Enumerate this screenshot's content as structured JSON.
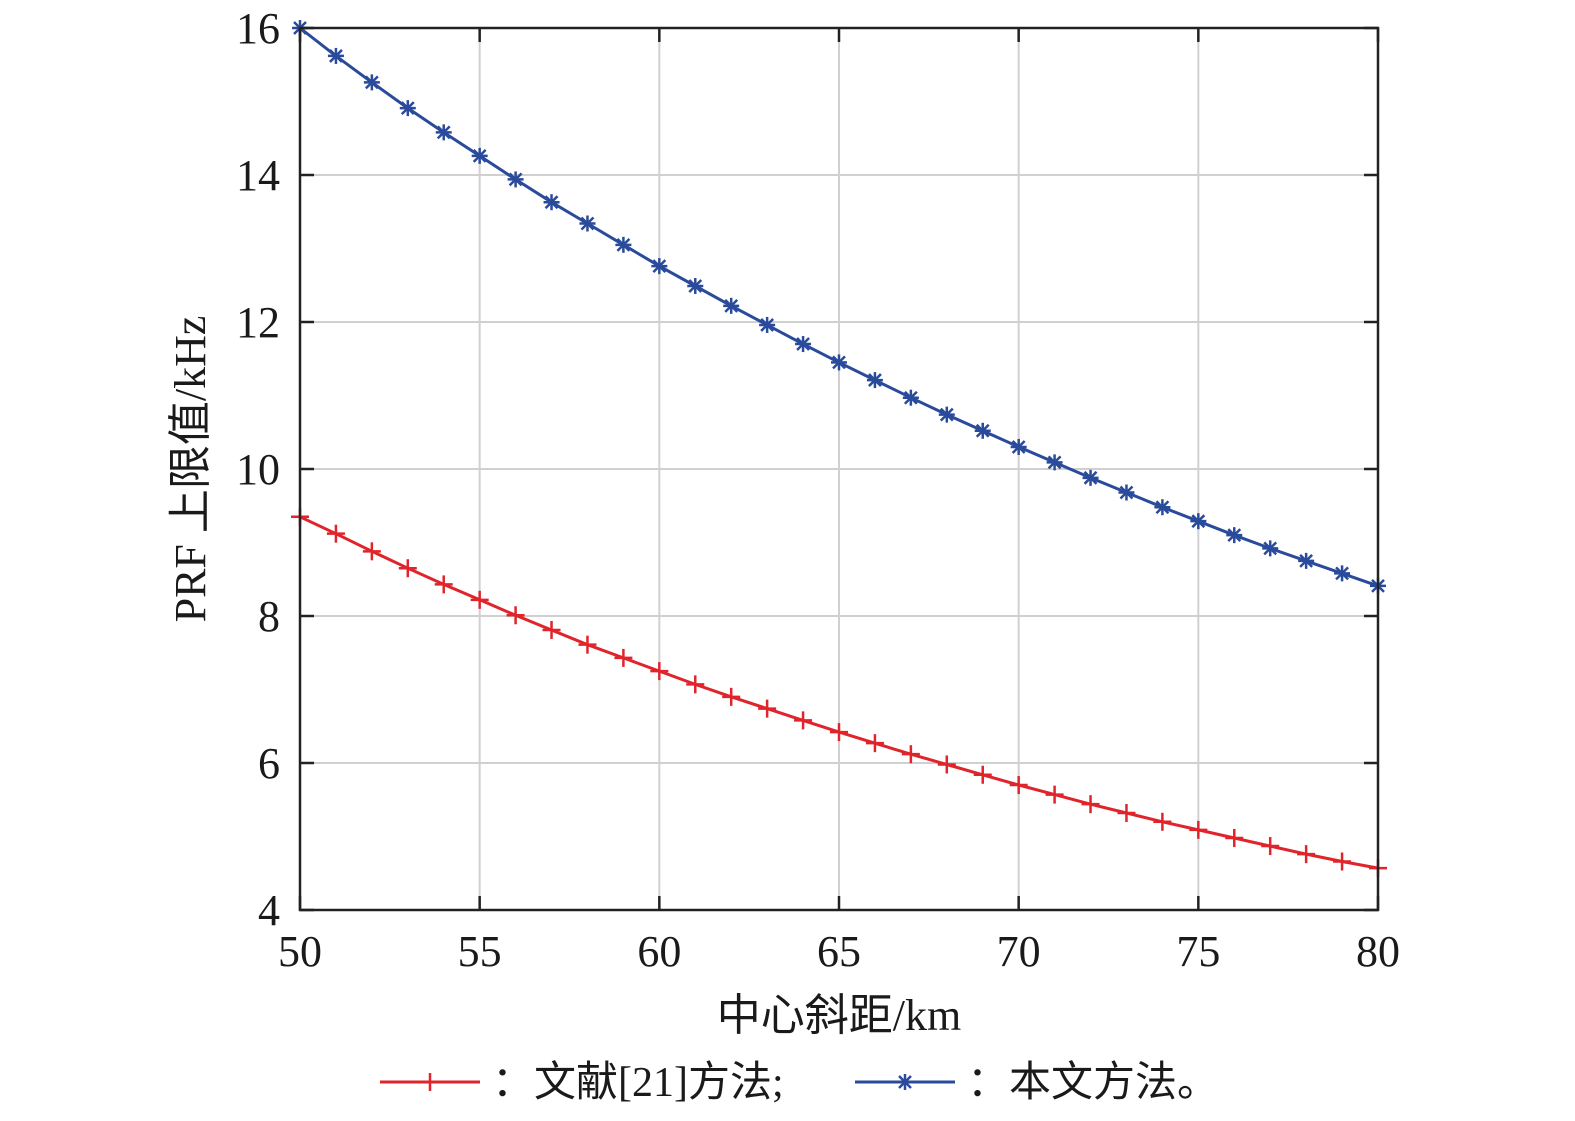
{
  "chart_data": {
    "type": "line",
    "xlabel": "中心斜距/km",
    "ylabel": "PRF 上限值/kHz",
    "xlim": [
      50,
      80
    ],
    "ylim": [
      4,
      16
    ],
    "xticks": [
      50,
      55,
      60,
      65,
      70,
      75,
      80
    ],
    "yticks": [
      4,
      6,
      8,
      10,
      12,
      14,
      16
    ],
    "grid": true,
    "legend_position": "bottom",
    "x": [
      50,
      51,
      52,
      53,
      54,
      55,
      56,
      57,
      58,
      59,
      60,
      61,
      62,
      63,
      64,
      65,
      66,
      67,
      68,
      69,
      70,
      71,
      72,
      73,
      74,
      75,
      76,
      77,
      78,
      79,
      80
    ],
    "series": [
      {
        "name": "：文献[21]方法;",
        "color": "#e0242b",
        "marker": "plus",
        "values": [
          9.35,
          9.12,
          8.88,
          8.65,
          8.43,
          8.22,
          8.01,
          7.81,
          7.61,
          7.43,
          7.25,
          7.07,
          6.9,
          6.74,
          6.58,
          6.42,
          6.27,
          6.12,
          5.98,
          5.84,
          5.7,
          5.57,
          5.44,
          5.32,
          5.2,
          5.09,
          4.98,
          4.87,
          4.76,
          4.66,
          4.57
        ]
      },
      {
        "name": "：本文方法。",
        "color": "#2a4b9b",
        "marker": "asterisk",
        "values": [
          16.0,
          15.62,
          15.26,
          14.91,
          14.58,
          14.26,
          13.94,
          13.63,
          13.34,
          13.05,
          12.76,
          12.49,
          12.22,
          11.96,
          11.7,
          11.45,
          11.21,
          10.97,
          10.74,
          10.52,
          10.3,
          10.09,
          9.88,
          9.68,
          9.48,
          9.29,
          9.1,
          8.92,
          8.75,
          8.58,
          8.41
        ]
      }
    ]
  }
}
